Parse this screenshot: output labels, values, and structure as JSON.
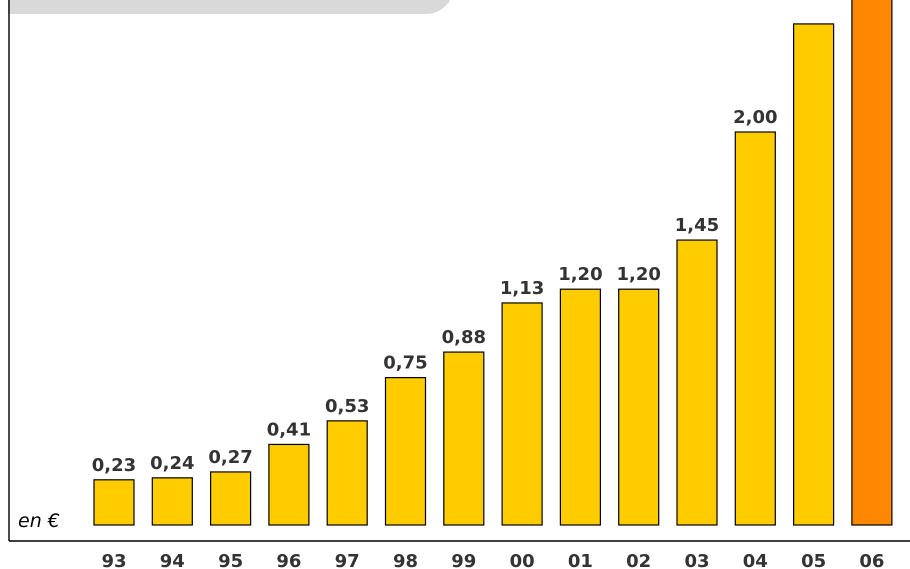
{
  "chart_data": {
    "type": "bar",
    "unit_label": "en €",
    "categories": [
      "93",
      "94",
      "95",
      "96",
      "97",
      "98",
      "99",
      "00",
      "01",
      "02",
      "03",
      "04",
      "05",
      "06"
    ],
    "values": [
      0.23,
      0.24,
      0.27,
      0.41,
      0.53,
      0.75,
      0.88,
      1.13,
      1.2,
      1.2,
      1.45,
      2.0,
      2.55,
      2.7
    ],
    "value_labels": [
      "0,23",
      "0,24",
      "0,27",
      "0,41",
      "0,53",
      "0,75",
      "0,88",
      "1,13",
      "1,20",
      "1,20",
      "1,45",
      "2,00",
      "",
      ""
    ],
    "bar_colors": [
      "#ffcc00",
      "#ffcc00",
      "#ffcc00",
      "#ffcc00",
      "#ffcc00",
      "#ffcc00",
      "#ffcc00",
      "#ffcc00",
      "#ffcc00",
      "#ffcc00",
      "#ffcc00",
      "#ffcc00",
      "#ffcc00",
      "#ff8800"
    ],
    "bar_stroke": "#000000",
    "ylim": [
      0,
      2.7
    ],
    "grid": false,
    "title": "",
    "xlabel": "",
    "ylabel": ""
  }
}
